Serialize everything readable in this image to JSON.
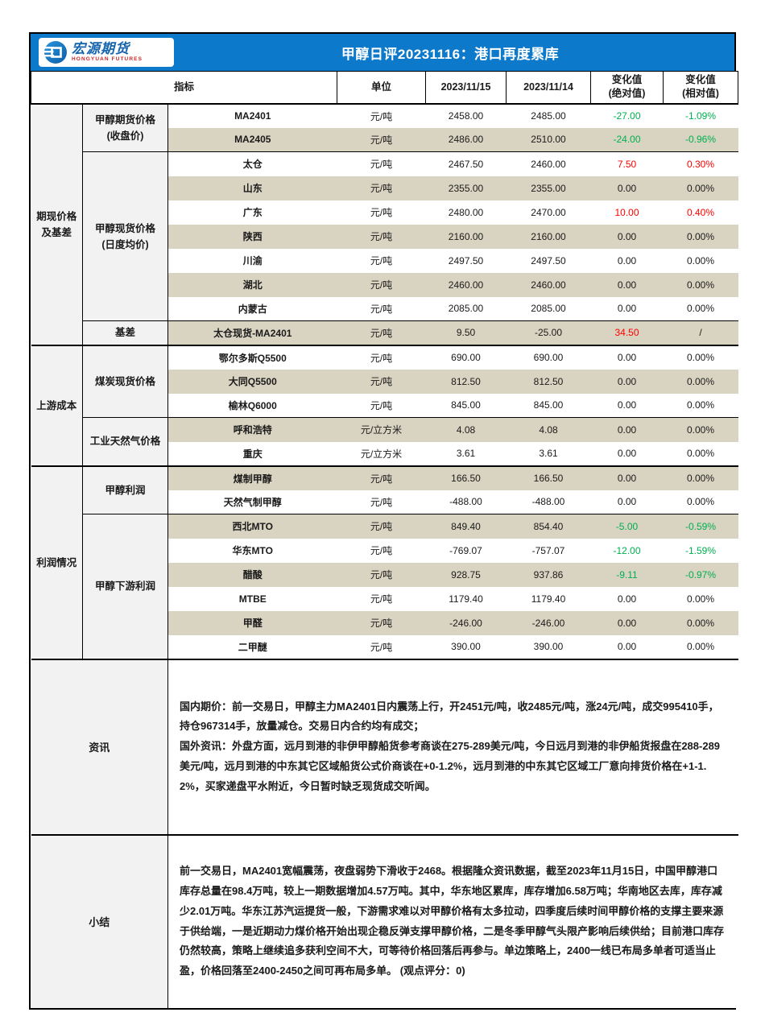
{
  "colors": {
    "title_bar_blue": "#0d79ca",
    "logo_blue": "#1464ae",
    "logo_red": "#cc2527",
    "stripe_beige": "#d9d3c1",
    "label_gray": "#f2f2f2",
    "up_red": "#ff0000",
    "down_green": "#00b050"
  },
  "header": {
    "logo_cn": "宏源期货",
    "logo_en": "HONGYUAN FUTURES",
    "title": "甲醇日评20231116：港口再度累库"
  },
  "table": {
    "headers": {
      "indicator": "指标",
      "unit": "单位",
      "date_current": "2023/11/15",
      "date_previous": "2023/11/14",
      "change_abs": "变化值\n(绝对值)",
      "change_rel": "变化值\n(相对值)"
    },
    "groups": [
      {
        "label": "期现价格\n及基差",
        "subgroups": [
          {
            "label": "甲醇期货价格\n(收盘价)",
            "rows": [
              {
                "name": "MA2401",
                "unit": "元/吨",
                "current": "2458.00",
                "previous": "2485.00",
                "change_abs": "-27.00",
                "change_rel": "-1.09%",
                "abs_dir": "down",
                "rel_dir": "down"
              },
              {
                "name": "MA2405",
                "unit": "元/吨",
                "current": "2486.00",
                "previous": "2510.00",
                "change_abs": "-24.00",
                "change_rel": "-0.96%",
                "abs_dir": "down",
                "rel_dir": "down"
              }
            ]
          },
          {
            "label": "甲醇现货价格\n(日度均价)",
            "rows": [
              {
                "name": "太仓",
                "unit": "元/吨",
                "current": "2467.50",
                "previous": "2460.00",
                "change_abs": "7.50",
                "change_rel": "0.30%",
                "abs_dir": "up",
                "rel_dir": "up"
              },
              {
                "name": "山东",
                "unit": "元/吨",
                "current": "2355.00",
                "previous": "2355.00",
                "change_abs": "0.00",
                "change_rel": "0.00%"
              },
              {
                "name": "广东",
                "unit": "元/吨",
                "current": "2480.00",
                "previous": "2470.00",
                "change_abs": "10.00",
                "change_rel": "0.40%",
                "abs_dir": "up",
                "rel_dir": "up"
              },
              {
                "name": "陕西",
                "unit": "元/吨",
                "current": "2160.00",
                "previous": "2160.00",
                "change_abs": "0.00",
                "change_rel": "0.00%"
              },
              {
                "name": "川渝",
                "unit": "元/吨",
                "current": "2497.50",
                "previous": "2497.50",
                "change_abs": "0.00",
                "change_rel": "0.00%"
              },
              {
                "name": "湖北",
                "unit": "元/吨",
                "current": "2460.00",
                "previous": "2460.00",
                "change_abs": "0.00",
                "change_rel": "0.00%"
              },
              {
                "name": "内蒙古",
                "unit": "元/吨",
                "current": "2085.00",
                "previous": "2085.00",
                "change_abs": "0.00",
                "change_rel": "0.00%"
              }
            ]
          },
          {
            "label": "基差",
            "rows": [
              {
                "name": "太仓现货-MA2401",
                "unit": "元/吨",
                "current": "9.50",
                "previous": "-25.00",
                "change_abs": "34.50",
                "change_rel": "/",
                "abs_dir": "up"
              }
            ]
          }
        ]
      },
      {
        "label": "上游成本",
        "subgroups": [
          {
            "label": "煤炭现货价格",
            "rows": [
              {
                "name": "鄂尔多斯Q5500",
                "unit": "元/吨",
                "current": "690.00",
                "previous": "690.00",
                "change_abs": "0.00",
                "change_rel": "0.00%"
              },
              {
                "name": "大同Q5500",
                "unit": "元/吨",
                "current": "812.50",
                "previous": "812.50",
                "change_abs": "0.00",
                "change_rel": "0.00%"
              },
              {
                "name": "榆林Q6000",
                "unit": "元/吨",
                "current": "845.00",
                "previous": "845.00",
                "change_abs": "0.00",
                "change_rel": "0.00%"
              }
            ]
          },
          {
            "label": "工业天然气价格",
            "rows": [
              {
                "name": "呼和浩特",
                "unit": "元/立方米",
                "current": "4.08",
                "previous": "4.08",
                "change_abs": "0.00",
                "change_rel": "0.00%"
              },
              {
                "name": "重庆",
                "unit": "元/立方米",
                "current": "3.61",
                "previous": "3.61",
                "change_abs": "0.00",
                "change_rel": "0.00%"
              }
            ]
          }
        ]
      },
      {
        "label": "利润情况",
        "subgroups": [
          {
            "label": "甲醇利润",
            "rows": [
              {
                "name": "煤制甲醇",
                "unit": "元/吨",
                "current": "166.50",
                "previous": "166.50",
                "change_abs": "0.00",
                "change_rel": "0.00%"
              },
              {
                "name": "天然气制甲醇",
                "unit": "元/吨",
                "current": "-488.00",
                "previous": "-488.00",
                "change_abs": "0.00",
                "change_rel": "0.00%"
              }
            ]
          },
          {
            "label": "甲醇下游利润",
            "rows": [
              {
                "name": "西北MTO",
                "unit": "元/吨",
                "current": "849.40",
                "previous": "854.40",
                "change_abs": "-5.00",
                "change_rel": "-0.59%",
                "abs_dir": "down",
                "rel_dir": "down"
              },
              {
                "name": "华东MTO",
                "unit": "元/吨",
                "current": "-769.07",
                "previous": "-757.07",
                "change_abs": "-12.00",
                "change_rel": "-1.59%",
                "abs_dir": "down",
                "rel_dir": "down"
              },
              {
                "name": "醋酸",
                "unit": "元/吨",
                "current": "928.75",
                "previous": "937.86",
                "change_abs": "-9.11",
                "change_rel": "-0.97%",
                "abs_dir": "down",
                "rel_dir": "down"
              },
              {
                "name": "MTBE",
                "unit": "元/吨",
                "current": "1179.40",
                "previous": "1179.40",
                "change_abs": "0.00",
                "change_rel": "0.00%"
              },
              {
                "name": "甲醛",
                "unit": "元/吨",
                "current": "-246.00",
                "previous": "-246.00",
                "change_abs": "0.00",
                "change_rel": "0.00%"
              },
              {
                "name": "二甲醚",
                "unit": "元/吨",
                "current": "390.00",
                "previous": "390.00",
                "change_abs": "0.00",
                "change_rel": "0.00%"
              }
            ]
          }
        ]
      }
    ]
  },
  "news": {
    "label": "资讯",
    "text": "国内期价：前一交易日，甲醇主力MA2401日内震荡上行，开2451元/吨，收2485元/吨，涨24元/吨，成交995410手，持仓967314手，放量减仓。交易日内合约均有成交；\n国外资讯：外盘方面，远月到港的非伊甲醇船货参考商谈在275-289美元/吨，今日远月到港的非伊船货报盘在288-289美元/吨，远月到港的中东其它区域船货公式价商谈在+0-1.2%，远月到港的中东其它区域工厂意向排货价格在+1-1.2%，买家递盘平水附近，今日暂时缺乏现货成交听闻。"
  },
  "summary": {
    "label": "小结",
    "text": "前一交易日，MA2401宽幅震荡，夜盘弱势下滑收于2468。根据隆众资讯数据，截至2023年11月15日，中国甲醇港口库存总量在98.4万吨，较上一期数据增加4.57万吨。其中，华东地区累库，库存增加6.58万吨；华南地区去库，库存减少2.01万吨。华东江苏汽运提货一般，下游需求难以对甲醇价格有太多拉动，四季度后续时间甲醇价格的支撑主要来源于供给端，一是近期动力煤价格开始出现企稳反弹支撑甲醇价格，二是冬季甲醇气头限产影响后续供给；目前港口库存仍然较高，策略上继续追多获利空间不大，可等待价格回落后再参与。单边策略上，2400一线已布局多单者可适当止盈，价格回落至2400-2450之间可再布局多单。 (观点评分：0)"
  }
}
